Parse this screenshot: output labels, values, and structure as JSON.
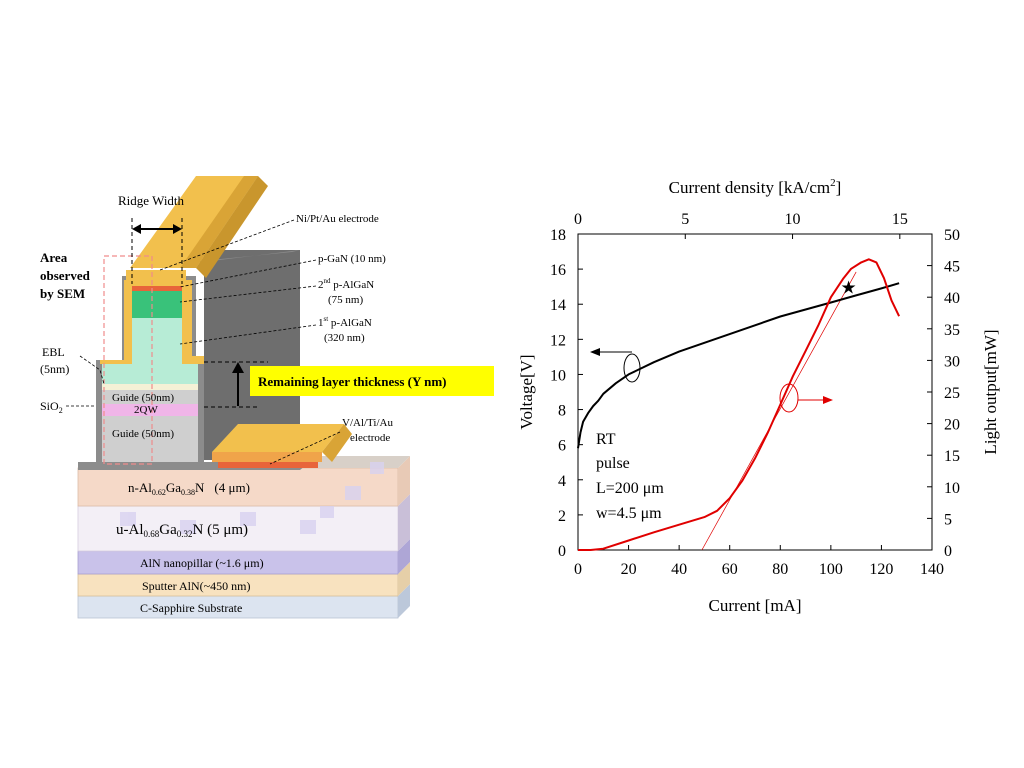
{
  "diagram": {
    "ridge_width": "Ridge Width",
    "area_observed": [
      "Area",
      "observed",
      "by SEM"
    ],
    "ebl": [
      "EBL",
      "(5nm)"
    ],
    "sio2": "SiO",
    "sio2_sub": "2",
    "electrode_top": "Ni/Pt/Au electrode",
    "pgan": "p-GaN (10 nm)",
    "p2_pre": "2",
    "p2_sup": "nd",
    "p2_post": " p-AlGaN",
    "p2_thick": "(75 nm)",
    "p1_pre": "1",
    "p1_sup": "st",
    "p1_post": " p-AlGaN",
    "p1_thick": "(320 nm)",
    "remaining": "Remaining layer thickness (Y nm)",
    "guide_top": "Guide (50nm)",
    "qw": "2QW",
    "guide_bottom": "Guide (50nm)",
    "electrode_bottom": [
      "V/Al/Ti/Au",
      "electrode"
    ],
    "n_layer": {
      "a": "n-Al",
      "b": "0.62",
      "c": "Ga",
      "d": "0.38",
      "e": "N",
      "f": "(4 μm)"
    },
    "u_layer": {
      "a": "u-Al",
      "b": "0.68",
      "c": "Ga",
      "d": "0.32",
      "e": "N (5 μm)"
    },
    "aln_pillar": "AlN nanopillar (~1.6 μm)",
    "sputter": "Sputter AlN(~450 nm)",
    "substrate": "C-Sapphire  Substrate",
    "colors": {
      "electrode": "#f2c04d",
      "p_gan": "#e8643a",
      "p2": "#39c27a",
      "p1": "#b7ecd6",
      "guide": "#cfcfcf",
      "qw": "#f0b5e8",
      "sio2": "#8c8c8c",
      "n_layer": "#f5d9c8",
      "u_layer": "#f3eff6",
      "pillar": "#c9c2ea",
      "sputter": "#f8e2bf",
      "substrate": "#dce4f0",
      "highlight": "#ffff00",
      "sem_box": "#f08c8c"
    }
  },
  "chart_data": {
    "type": "line",
    "xlabel": "Current [mA]",
    "ylabel_left": "Voltage[V]",
    "ylabel_right": "Light output[mW]",
    "x2label": "Current density [kA/cm",
    "x2label_sup": "2",
    "x2label_end": "]",
    "xlim": [
      0,
      140
    ],
    "xticks": [
      0,
      20,
      40,
      60,
      80,
      100,
      120,
      140
    ],
    "ylim_left": [
      0,
      18
    ],
    "yticks_left": [
      0,
      2,
      4,
      6,
      8,
      10,
      12,
      14,
      16,
      18
    ],
    "ylim_right": [
      0,
      50
    ],
    "yticks_right": [
      0,
      5,
      10,
      15,
      20,
      25,
      30,
      35,
      40,
      45,
      50
    ],
    "x2lim": [
      0,
      16.5
    ],
    "x2ticks": [
      0,
      5,
      10,
      15
    ],
    "annotation": [
      "RT",
      "pulse",
      "L=200 μm",
      "w=4.5 μm"
    ],
    "series": [
      {
        "color": "#000000",
        "axis": "left",
        "x": [
          0,
          1,
          2,
          4,
          6,
          8,
          10,
          15,
          20,
          30,
          40,
          50,
          60,
          70,
          80,
          90,
          100,
          110,
          120,
          127
        ],
        "y": [
          5.8,
          6.7,
          7.3,
          7.8,
          8.2,
          8.5,
          8.9,
          9.5,
          10.0,
          10.7,
          11.3,
          11.8,
          12.3,
          12.8,
          13.3,
          13.7,
          14.1,
          14.5,
          14.9,
          15.2
        ]
      },
      {
        "color": "#e00000",
        "axis": "right",
        "x": [
          0,
          5,
          10,
          20,
          30,
          40,
          50,
          55,
          60,
          65,
          70,
          75,
          80,
          85,
          90,
          95,
          100,
          105,
          108,
          112,
          115,
          118,
          121,
          124,
          127
        ],
        "y": [
          0,
          0,
          0.2,
          1.5,
          2.8,
          4.0,
          5.2,
          6.2,
          8.2,
          11.0,
          14.5,
          18.5,
          23.0,
          27.5,
          31.5,
          35.5,
          40.0,
          43.0,
          44.5,
          45.5,
          46.0,
          45.5,
          43.0,
          39.5,
          37.0
        ]
      }
    ],
    "marker": {
      "x": 107,
      "y": 41.5,
      "symbol": "★"
    },
    "threshold_line": {
      "x": [
        49,
        110
      ],
      "y": [
        0,
        44
      ]
    }
  }
}
